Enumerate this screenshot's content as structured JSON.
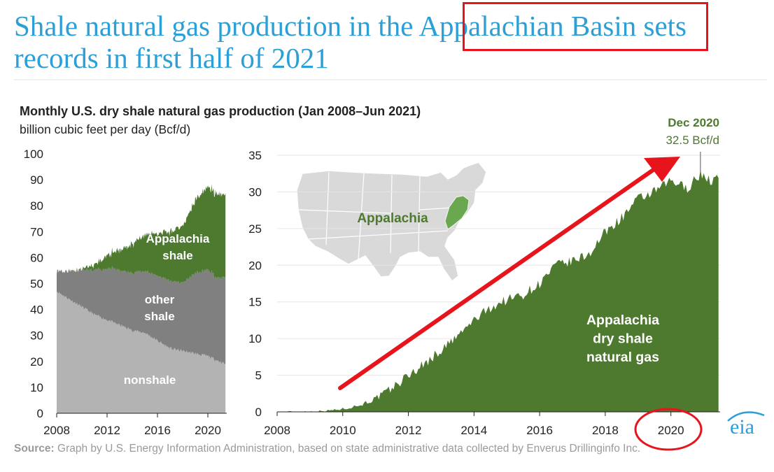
{
  "headline": {
    "text_before": "Shale natural gas production in the ",
    "highlighted": "Appalachian Basin",
    "text_after": " sets records in first half of 2021"
  },
  "chart_title": "Monthly U.S. dry shale natural gas production (Jan 2008–Jun 2021)",
  "units": "billion cubic feet per day (Bcf/d)",
  "source": {
    "label": "Source:",
    "text": "Graph by U.S. Energy Information Administration, based on state administrative data collected by Enverus Drillinginfo Inc."
  },
  "logo_text": "eia",
  "colors": {
    "headline": "#2b9fd6",
    "appalachia": "#4d7a2f",
    "other_shale": "#808080",
    "nonshale": "#b3b3b3",
    "annotation_red": "#e8141c",
    "map_land": "#d9d9d9"
  },
  "chart_data": [
    {
      "type": "area",
      "stacked": true,
      "x_ticks": [
        "2008",
        "2012",
        "2016",
        "2020"
      ],
      "y_ticks": [
        "0",
        "10",
        "20",
        "30",
        "40",
        "50",
        "60",
        "70",
        "80",
        "90",
        "100"
      ],
      "ylim": [
        0,
        100
      ],
      "xlim": [
        2008,
        2021.5
      ],
      "x": [
        2008,
        2009,
        2010,
        2011,
        2012,
        2013,
        2014,
        2015,
        2016,
        2017,
        2018,
        2019,
        2020,
        2020.9,
        2021.4
      ],
      "series": [
        {
          "name": "nonshale",
          "label": "nonshale",
          "values": [
            47,
            44,
            41,
            38,
            36,
            34,
            32,
            31,
            28,
            25,
            24,
            23,
            22,
            20,
            19
          ]
        },
        {
          "name": "other shale",
          "label": "other\nshale",
          "values": [
            8,
            11,
            14,
            17,
            20,
            21,
            22,
            24,
            25,
            26,
            26,
            31,
            33,
            32,
            34
          ]
        },
        {
          "name": "Appalachia shale",
          "label": "Appalachia\nshale",
          "values": [
            0,
            0,
            0.5,
            2,
            5,
            8,
            11,
            14,
            16,
            19,
            22,
            28,
            32,
            32.5,
            32
          ]
        }
      ]
    },
    {
      "type": "area",
      "x_ticks": [
        "2008",
        "2010",
        "2012",
        "2014",
        "2016",
        "2018",
        "2020"
      ],
      "y_ticks": [
        "0",
        "5",
        "10",
        "15",
        "20",
        "25",
        "30",
        "35"
      ],
      "ylim": [
        0,
        35
      ],
      "xlim": [
        2008,
        2021.5
      ],
      "series": [
        {
          "name": "Appalachia dry shale natural gas",
          "label": "Appalachia\ndry shale\nnatural gas",
          "x": [
            2008,
            2009,
            2009.5,
            2010,
            2010.5,
            2011,
            2011.5,
            2012,
            2012.5,
            2013,
            2013.5,
            2014,
            2014.5,
            2015,
            2015.5,
            2016,
            2016.5,
            2017,
            2017.5,
            2018,
            2018.5,
            2019,
            2019.5,
            2020,
            2020.5,
            2020.9,
            2021.2,
            2021.45
          ],
          "values": [
            0,
            0.05,
            0.15,
            0.4,
            0.9,
            1.8,
            3.2,
            5.0,
            6.6,
            8.4,
            10.3,
            12.5,
            14.2,
            15.3,
            16.0,
            17.5,
            20.0,
            20.5,
            21.5,
            24.5,
            26.5,
            29.0,
            30.0,
            31.5,
            30.5,
            32.5,
            31.5,
            31.9
          ]
        }
      ],
      "annotation": {
        "title": "Dec 2020",
        "value": "32.5 Bcf/d",
        "x": 2020.9,
        "y": 32.5
      },
      "inset_map_label": "Appalachia"
    }
  ]
}
